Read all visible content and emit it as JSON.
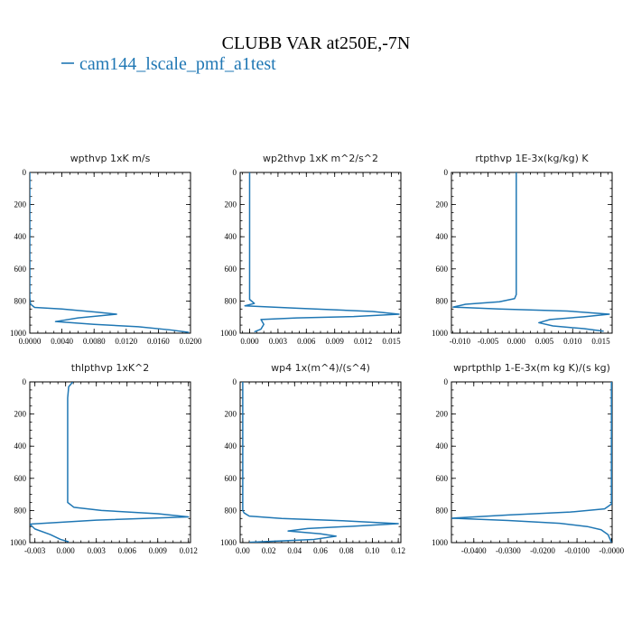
{
  "figure": {
    "title": "CLUBB VAR at250E,-7N",
    "legend": [
      {
        "label": "cam144_lscale_pmf_a1test",
        "color": "#1f77b4"
      }
    ]
  },
  "chart_data": [
    {
      "type": "line",
      "title": "wpthvp  1xK m/s",
      "xlim": [
        0,
        0.02
      ],
      "ylim": [
        1000,
        0
      ],
      "xticks": [
        "0.0000",
        "0.0040",
        "0.0080",
        "0.0120",
        "0.0160",
        "0.0200"
      ],
      "xtick_values": [
        0,
        0.004,
        0.008,
        0.012,
        0.016,
        0.02
      ],
      "yticks": [
        "0",
        "200",
        "400",
        "600",
        "800",
        "1000"
      ],
      "ytick_values": [
        0,
        200,
        400,
        600,
        800,
        1000
      ],
      "series": [
        {
          "color": "#1f77b4",
          "points": [
            [
              0.0,
              0
            ],
            [
              0.0,
              200
            ],
            [
              0.0,
              400
            ],
            [
              0.0,
              600
            ],
            [
              0.0,
              780
            ],
            [
              0.0001,
              820
            ],
            [
              0.0006,
              840
            ],
            [
              0.004,
              850
            ],
            [
              0.0085,
              870
            ],
            [
              0.0108,
              882
            ],
            [
              0.006,
              905
            ],
            [
              0.0032,
              928
            ],
            [
              0.008,
              945
            ],
            [
              0.0135,
              960
            ],
            [
              0.0175,
              980
            ],
            [
              0.0198,
              995
            ]
          ]
        }
      ]
    },
    {
      "type": "line",
      "title": "wp2thvp  1xK m^2/s^2",
      "xlim": [
        -0.001,
        0.016
      ],
      "ylim": [
        1000,
        0
      ],
      "xticks": [
        "0.000",
        "0.003",
        "0.006",
        "0.009",
        "0.012",
        "0.015"
      ],
      "xtick_values": [
        0,
        0.003,
        0.006,
        0.009,
        0.012,
        0.015
      ],
      "yticks": [
        "0",
        "200",
        "400",
        "600",
        "800",
        "1000"
      ],
      "ytick_values": [
        0,
        200,
        400,
        600,
        800,
        1000
      ],
      "series": [
        {
          "color": "#1f77b4",
          "points": [
            [
              0.0,
              0
            ],
            [
              0.0,
              200
            ],
            [
              0.0,
              400
            ],
            [
              0.0,
              600
            ],
            [
              0.0,
              790
            ],
            [
              0.0005,
              815
            ],
            [
              -0.0005,
              830
            ],
            [
              0.005,
              845
            ],
            [
              0.013,
              865
            ],
            [
              0.0158,
              882
            ],
            [
              0.011,
              897
            ],
            [
              0.005,
              905
            ],
            [
              0.0012,
              915
            ],
            [
              0.0015,
              945
            ],
            [
              0.0012,
              975
            ],
            [
              0.0005,
              992
            ]
          ]
        }
      ]
    },
    {
      "type": "line",
      "title": "rtpthvp  1E-3x(kg/kg) K",
      "xlim": [
        -0.0115,
        0.017
      ],
      "ylim": [
        1000,
        0
      ],
      "xticks": [
        "-0.010",
        "-0.005",
        "0.000",
        "0.005",
        "0.010",
        "0.015"
      ],
      "xtick_values": [
        -0.01,
        -0.005,
        0,
        0.005,
        0.01,
        0.015
      ],
      "yticks": [
        "0",
        "200",
        "400",
        "600",
        "800",
        "1000"
      ],
      "ytick_values": [
        0,
        200,
        400,
        600,
        800,
        1000
      ],
      "series": [
        {
          "color": "#1f77b4",
          "points": [
            [
              0.0,
              0
            ],
            [
              0.0,
              200
            ],
            [
              0.0,
              400
            ],
            [
              0.0,
              600
            ],
            [
              0.0,
              760
            ],
            [
              -0.0003,
              785
            ],
            [
              -0.003,
              805
            ],
            [
              -0.009,
              820
            ],
            [
              -0.0112,
              838
            ],
            [
              -0.003,
              850
            ],
            [
              0.009,
              862
            ],
            [
              0.0165,
              882
            ],
            [
              0.012,
              898
            ],
            [
              0.006,
              915
            ],
            [
              0.004,
              935
            ],
            [
              0.0065,
              955
            ],
            [
              0.012,
              972
            ],
            [
              0.0155,
              988
            ]
          ]
        }
      ]
    },
    {
      "type": "line",
      "title": "thlpthvp  1xK^2",
      "xlim": [
        -0.0035,
        0.0122
      ],
      "ylim": [
        1000,
        0
      ],
      "xticks": [
        "-0.003",
        "0.000",
        "0.003",
        "0.006",
        "0.009",
        "0.012"
      ],
      "xtick_values": [
        -0.003,
        0,
        0.003,
        0.006,
        0.009,
        0.012
      ],
      "yticks": [
        "0",
        "200",
        "400",
        "600",
        "800",
        "1000"
      ],
      "ytick_values": [
        0,
        200,
        400,
        600,
        800,
        1000
      ],
      "series": [
        {
          "color": "#1f77b4",
          "points": [
            [
              0.0007,
              0
            ],
            [
              0.0003,
              30
            ],
            [
              0.0002,
              100
            ],
            [
              0.0002,
              200
            ],
            [
              0.0002,
              400
            ],
            [
              0.0002,
              600
            ],
            [
              0.0002,
              750
            ],
            [
              0.0008,
              780
            ],
            [
              0.0035,
              800
            ],
            [
              0.009,
              820
            ],
            [
              0.012,
              840
            ],
            [
              0.003,
              860
            ],
            [
              -0.0035,
              885
            ],
            [
              -0.003,
              915
            ],
            [
              -0.0015,
              950
            ],
            [
              -0.0005,
              980
            ],
            [
              0.0003,
              995
            ]
          ]
        }
      ]
    },
    {
      "type": "line",
      "title": "wp4  1x(m^4)/(s^4)",
      "xlim": [
        -0.002,
        0.122
      ],
      "ylim": [
        1000,
        0
      ],
      "xticks": [
        "0.00",
        "0.02",
        "0.04",
        "0.06",
        "0.08",
        "0.10",
        "0.12"
      ],
      "xtick_values": [
        0,
        0.02,
        0.04,
        0.06,
        0.08,
        0.1,
        0.12
      ],
      "yticks": [
        "0",
        "200",
        "400",
        "600",
        "800",
        "1000"
      ],
      "ytick_values": [
        0,
        200,
        400,
        600,
        800,
        1000
      ],
      "series": [
        {
          "color": "#1f77b4",
          "points": [
            [
              0.0,
              0
            ],
            [
              0.0,
              200
            ],
            [
              0.0,
              400
            ],
            [
              0.0,
              600
            ],
            [
              0.0,
              800
            ],
            [
              0.001,
              815
            ],
            [
              0.005,
              835
            ],
            [
              0.03,
              850
            ],
            [
              0.08,
              865
            ],
            [
              0.12,
              882
            ],
            [
              0.085,
              898
            ],
            [
              0.05,
              912
            ],
            [
              0.035,
              928
            ],
            [
              0.06,
              945
            ],
            [
              0.072,
              960
            ],
            [
              0.055,
              980
            ],
            [
              0.005,
              998
            ]
          ]
        }
      ]
    },
    {
      "type": "line",
      "title": "wprtpthlp  1-E-3x(m kg K)/(s kg)",
      "xlim": [
        -0.0465,
        0.0002
      ],
      "ylim": [
        1000,
        0
      ],
      "xticks": [
        "-0.0400",
        "-0.0300",
        "-0.0200",
        "-0.0100",
        "-0.0000"
      ],
      "xtick_values": [
        -0.04,
        -0.03,
        -0.02,
        -0.01,
        0
      ],
      "yticks": [
        "0",
        "200",
        "400",
        "600",
        "800",
        "1000"
      ],
      "ytick_values": [
        0,
        200,
        400,
        600,
        800,
        1000
      ],
      "series": [
        {
          "color": "#1f77b4",
          "points": [
            [
              0.0,
              0
            ],
            [
              0.0,
              200
            ],
            [
              0.0,
              400
            ],
            [
              0.0,
              600
            ],
            [
              0.0,
              760
            ],
            [
              -0.001,
              775
            ],
            [
              -0.002,
              790
            ],
            [
              -0.012,
              810
            ],
            [
              -0.03,
              828
            ],
            [
              -0.0465,
              848
            ],
            [
              -0.03,
              862
            ],
            [
              -0.015,
              880
            ],
            [
              -0.007,
              900
            ],
            [
              -0.003,
              920
            ],
            [
              -0.001,
              950
            ],
            [
              0.0,
              998
            ]
          ]
        }
      ]
    }
  ]
}
